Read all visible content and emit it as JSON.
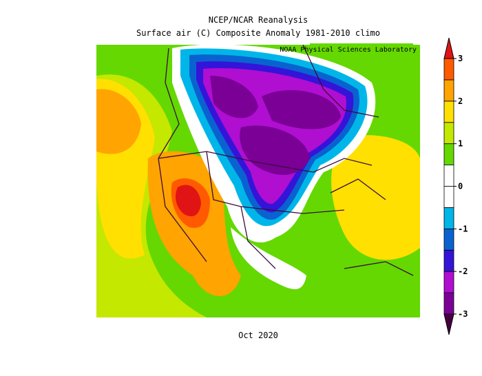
{
  "header": {
    "title": "NCEP/NCAR Reanalysis",
    "subtitle": "Surface air (C) Composite Anomaly 1981-2010 climo",
    "credit": "NOAA Physical Sciences Laboratory"
  },
  "footer": {
    "label": "Oct 2020"
  },
  "colorbar": {
    "ticks": [
      -3,
      -2,
      -1,
      0,
      1,
      2,
      3
    ],
    "lim": [
      -3,
      3
    ],
    "colors": [
      "#440040",
      "#7a0096",
      "#b00ed0",
      "#3414d8",
      "#0a62d0",
      "#00b6e8",
      "#ffffff",
      "#ffffff",
      "#64d800",
      "#c4e800",
      "#ffe000",
      "#ffa400",
      "#ff5a00",
      "#e01414"
    ]
  }
}
